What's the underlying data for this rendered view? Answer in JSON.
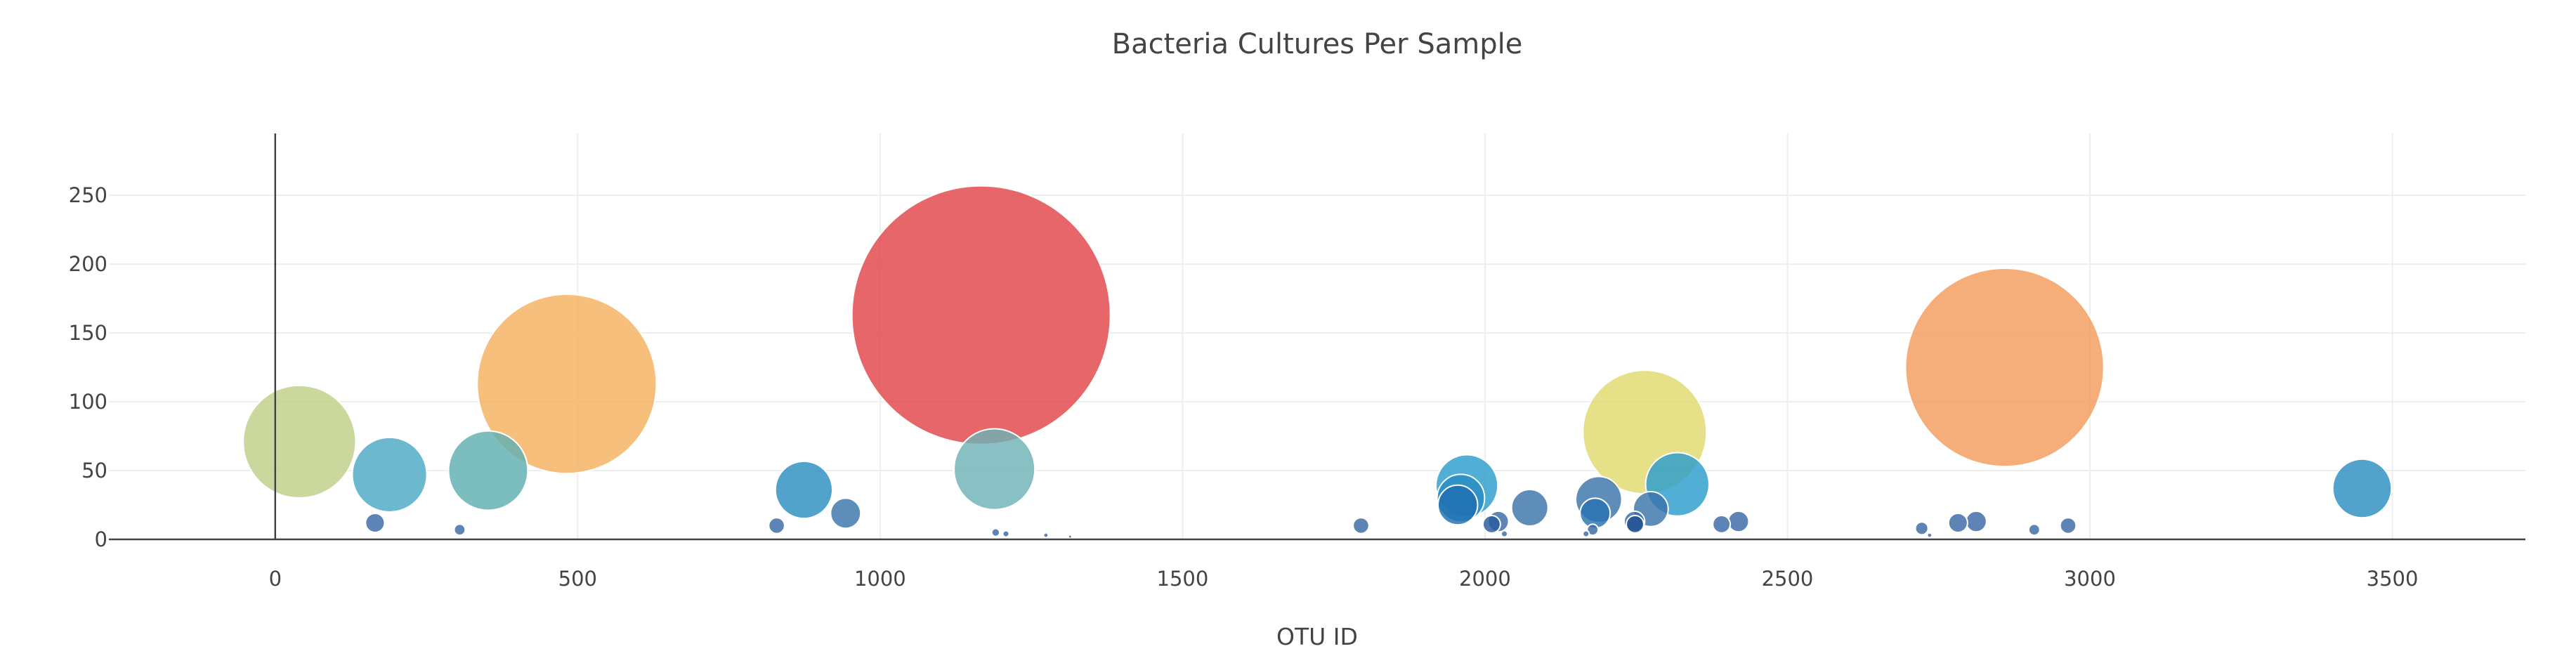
{
  "chart_data": {
    "type": "scatter",
    "title": "Bacteria Cultures Per Sample",
    "xlabel": "OTU ID",
    "ylabel": "",
    "xlim": [
      -275,
      3720
    ],
    "ylim": [
      0,
      295
    ],
    "x_ticks": [
      0,
      500,
      1000,
      1500,
      2000,
      2500,
      3000,
      3500
    ],
    "y_ticks": [
      0,
      50,
      100,
      150,
      200,
      250
    ],
    "grid": true,
    "legend": "none",
    "marker_size_encodes": "y value",
    "points": [
      {
        "x": 40,
        "y": 71,
        "color": "#c0cf87"
      },
      {
        "x": 165,
        "y": 12,
        "color": "#3a69a6"
      },
      {
        "x": 189,
        "y": 47,
        "color": "#4aa8c4"
      },
      {
        "x": 305,
        "y": 7,
        "color": "#3a69a6"
      },
      {
        "x": 352,
        "y": 50,
        "color": "#5fb0b2"
      },
      {
        "x": 482,
        "y": 113,
        "color": "#f4b15f"
      },
      {
        "x": 829,
        "y": 10,
        "color": "#3a69a6"
      },
      {
        "x": 874,
        "y": 36,
        "color": "#2c8fc0"
      },
      {
        "x": 943,
        "y": 19,
        "color": "#3a74ab"
      },
      {
        "x": 1167,
        "y": 163,
        "color": "#e04448"
      },
      {
        "x": 1189,
        "y": 51,
        "color": "#6fb2b6"
      },
      {
        "x": 1191,
        "y": 5,
        "color": "#3a69a6"
      },
      {
        "x": 1208,
        "y": 4,
        "color": "#3a69a6"
      },
      {
        "x": 1274,
        "y": 3,
        "color": "#3a69a6"
      },
      {
        "x": 1314,
        "y": 2,
        "color": "#3a69a6"
      },
      {
        "x": 1795,
        "y": 10,
        "color": "#3a69a6"
      },
      {
        "x": 1970,
        "y": 39,
        "color": "#2b9ccc"
      },
      {
        "x": 1960,
        "y": 30,
        "color": "#2a8ec3"
      },
      {
        "x": 1955,
        "y": 25,
        "color": "#1f6fb0"
      },
      {
        "x": 2011,
        "y": 11,
        "color": "#2a5a9c"
      },
      {
        "x": 2022,
        "y": 13,
        "color": "#3a69a6"
      },
      {
        "x": 2032,
        "y": 4,
        "color": "#3a69a6"
      },
      {
        "x": 2074,
        "y": 23,
        "color": "#3a74ab"
      },
      {
        "x": 2167,
        "y": 4,
        "color": "#3a69a6"
      },
      {
        "x": 2178,
        "y": 7,
        "color": "#3a69a6"
      },
      {
        "x": 2188,
        "y": 29,
        "color": "#3a74ab"
      },
      {
        "x": 2182,
        "y": 19,
        "color": "#2a72b2"
      },
      {
        "x": 2247,
        "y": 13,
        "color": "#3a69a6"
      },
      {
        "x": 2248,
        "y": 11,
        "color": "#1f4f91"
      },
      {
        "x": 2264,
        "y": 78,
        "color": "#e0d96e"
      },
      {
        "x": 2274,
        "y": 22,
        "color": "#3a74ab"
      },
      {
        "x": 2318,
        "y": 40,
        "color": "#2b9ccc"
      },
      {
        "x": 2391,
        "y": 11,
        "color": "#3a69a6"
      },
      {
        "x": 2419,
        "y": 13,
        "color": "#3a69a6"
      },
      {
        "x": 2722,
        "y": 8,
        "color": "#3a69a6"
      },
      {
        "x": 2735,
        "y": 3,
        "color": "#3a69a6"
      },
      {
        "x": 2782,
        "y": 12,
        "color": "#3a69a6"
      },
      {
        "x": 2812,
        "y": 13,
        "color": "#3a69a6"
      },
      {
        "x": 2859,
        "y": 125,
        "color": "#f39b5c"
      },
      {
        "x": 2908,
        "y": 7,
        "color": "#3a69a6"
      },
      {
        "x": 2964,
        "y": 10,
        "color": "#3a69a6"
      },
      {
        "x": 3450,
        "y": 37,
        "color": "#2c8fc0"
      }
    ]
  }
}
